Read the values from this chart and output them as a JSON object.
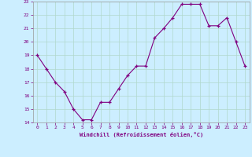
{
  "x": [
    0,
    1,
    2,
    3,
    4,
    5,
    6,
    7,
    8,
    9,
    10,
    11,
    12,
    13,
    14,
    15,
    16,
    17,
    18,
    19,
    20,
    21,
    22,
    23
  ],
  "y": [
    19,
    18,
    17,
    16.3,
    15,
    14.2,
    14.2,
    15.5,
    15.5,
    16.5,
    17.5,
    18.2,
    18.2,
    20.3,
    21.0,
    21.8,
    22.8,
    22.8,
    22.8,
    21.2,
    21.2,
    21.8,
    20.0,
    18.2
  ],
  "line_color": "#800080",
  "marker_color": "#800080",
  "bg_color": "#cceeff",
  "grid_color": "#b0d8cc",
  "xlabel": "Windchill (Refroidissement éolien,°C)",
  "ylim": [
    14,
    23
  ],
  "xlim_min": -0.5,
  "xlim_max": 23.5,
  "yticks": [
    14,
    15,
    16,
    17,
    18,
    19,
    20,
    21,
    22,
    23
  ],
  "xticks": [
    0,
    1,
    2,
    3,
    4,
    5,
    6,
    7,
    8,
    9,
    10,
    11,
    12,
    13,
    14,
    15,
    16,
    17,
    18,
    19,
    20,
    21,
    22,
    23
  ]
}
